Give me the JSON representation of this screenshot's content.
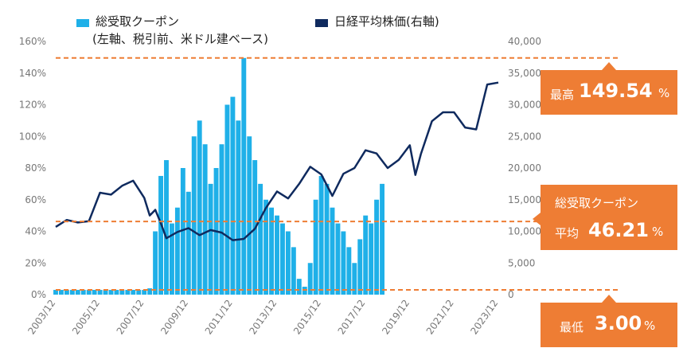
{
  "chart_data": {
    "type": "bar+line",
    "series": [
      {
        "name": "総受取クーポン",
        "name_sub": "(左軸、税引前、米ドル建ベース)",
        "type": "bar",
        "axis": "left",
        "color": "#1fb0e8",
        "x": [
          "2003/12",
          "2004/03",
          "2004/06",
          "2004/09",
          "2004/12",
          "2005/03",
          "2005/06",
          "2005/09",
          "2005/12",
          "2006/03",
          "2006/06",
          "2006/09",
          "2006/12",
          "2007/03",
          "2007/06",
          "2007/09",
          "2007/12",
          "2008/03",
          "2008/06",
          "2008/09",
          "2008/12",
          "2009/03",
          "2009/06",
          "2009/09",
          "2009/12",
          "2010/03",
          "2010/06",
          "2010/09",
          "2010/12",
          "2011/03",
          "2011/06",
          "2011/09",
          "2011/12",
          "2012/03",
          "2012/06",
          "2012/09",
          "2012/12",
          "2013/03",
          "2013/06",
          "2013/09",
          "2013/12",
          "2014/03",
          "2014/06",
          "2014/09",
          "2014/12",
          "2015/03",
          "2015/06",
          "2015/09",
          "2015/12",
          "2016/03",
          "2016/06",
          "2016/09",
          "2016/12",
          "2017/03",
          "2017/06",
          "2017/09",
          "2017/12",
          "2018/03",
          "2018/06",
          "2018/09"
        ],
        "values": [
          3,
          3,
          3,
          3,
          3,
          3,
          3,
          3,
          3,
          3,
          3,
          3,
          3,
          3,
          3,
          3,
          3,
          4,
          40,
          75,
          85,
          45,
          55,
          80,
          65,
          100,
          110,
          95,
          70,
          80,
          95,
          120,
          125,
          110,
          149.54,
          100,
          85,
          70,
          60,
          55,
          50,
          45,
          40,
          30,
          10,
          5,
          20,
          60,
          75,
          70,
          55,
          45,
          40,
          30,
          20,
          35,
          50,
          45,
          60,
          70
        ]
      },
      {
        "name": "日経平均株価(右軸)",
        "type": "line",
        "axis": "right",
        "color": "#0f2a5e",
        "x": [
          "2003/12",
          "2004/06",
          "2004/12",
          "2005/06",
          "2005/12",
          "2006/06",
          "2006/12",
          "2007/06",
          "2007/12",
          "2008/03",
          "2008/06",
          "2008/09",
          "2008/12",
          "2009/06",
          "2009/12",
          "2010/06",
          "2010/12",
          "2011/06",
          "2011/12",
          "2012/06",
          "2012/12",
          "2013/06",
          "2013/12",
          "2014/06",
          "2014/12",
          "2015/06",
          "2015/12",
          "2016/06",
          "2016/12",
          "2017/06",
          "2017/12",
          "2018/06",
          "2018/12",
          "2019/06",
          "2019/12",
          "2020/03",
          "2020/06",
          "2020/12",
          "2021/06",
          "2021/12",
          "2022/06",
          "2022/12",
          "2023/06",
          "2023/12"
        ],
        "values": [
          10700,
          11800,
          11400,
          11600,
          16100,
          15800,
          17200,
          18000,
          15300,
          12500,
          13400,
          11300,
          8900,
          9900,
          10500,
          9400,
          10200,
          9800,
          8600,
          8800,
          10400,
          13700,
          16300,
          15200,
          17500,
          20200,
          19000,
          15600,
          19100,
          20000,
          22800,
          22300,
          20000,
          21300,
          23600,
          18900,
          22200,
          27400,
          28800,
          28800,
          26400,
          26100,
          33200,
          33500
        ]
      }
    ],
    "x_ticks": [
      "2003/12",
      "2005/12",
      "2007/12",
      "2009/12",
      "2011/12",
      "2013/12",
      "2015/12",
      "2017/12",
      "2019/12",
      "2021/12",
      "2023/12"
    ],
    "y_left": {
      "min": 0,
      "max": 160,
      "ticks": [
        "0%",
        "20%",
        "40%",
        "60%",
        "80%",
        "100%",
        "120%",
        "140%",
        "160%"
      ]
    },
    "y_right": {
      "min": 0,
      "max": 40000,
      "ticks": [
        "0",
        "5,000",
        "10,000",
        "15,000",
        "20,000",
        "25,000",
        "30,000",
        "35,000",
        "40,000"
      ]
    },
    "reference_lines": [
      {
        "id": "max",
        "value": 149.54
      },
      {
        "id": "avg",
        "value": 46.21
      },
      {
        "id": "min",
        "value": 3.0
      }
    ],
    "annotations": {
      "max": {
        "label": "最高",
        "value": "149.54",
        "unit": "%"
      },
      "avg": {
        "label": "総受取クーポン",
        "label2": "平均",
        "value": "46.21",
        "unit": "%"
      },
      "min": {
        "label": "最低",
        "value": "3.00",
        "unit": "%"
      }
    },
    "legend_position": "top",
    "grid": false
  },
  "colors": {
    "bar": "#1fb0e8",
    "line": "#0f2a5e",
    "accent": "#ee7d34",
    "axis_text": "#777777"
  }
}
